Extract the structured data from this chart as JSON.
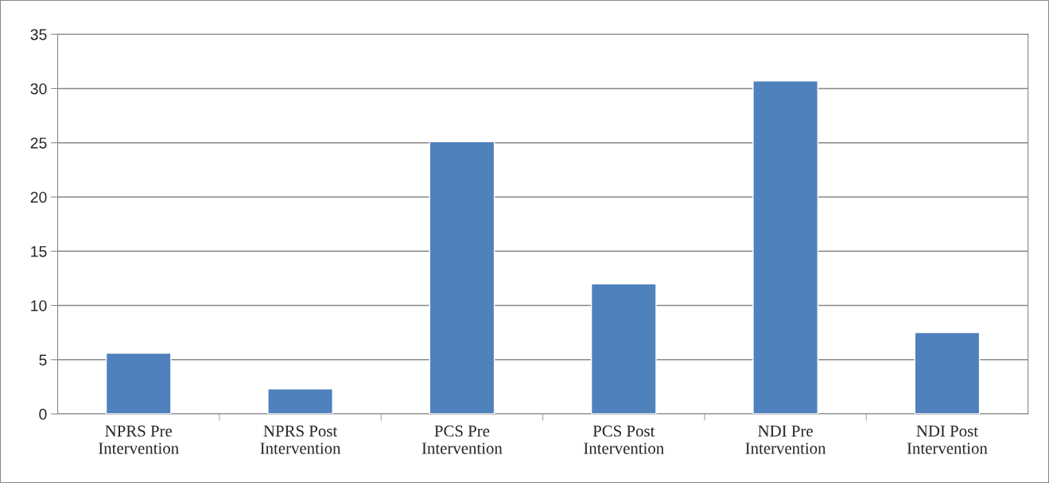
{
  "chart_data": {
    "type": "bar",
    "categories": [
      "NPRS Pre\nIntervention",
      "NPRS Post\nIntervention",
      "PCS Pre\nIntervention",
      "PCS Post\nIntervention",
      "NDI Pre\nIntervention",
      "NDI Post\nIntervention"
    ],
    "values": [
      5.6,
      2.3,
      25.1,
      12.0,
      30.7,
      7.5
    ],
    "color": "#4f81bd",
    "ylim": [
      0,
      35
    ],
    "yticks": [
      0,
      5,
      10,
      15,
      20,
      25,
      30,
      35
    ],
    "grid": "y",
    "legend": false
  }
}
